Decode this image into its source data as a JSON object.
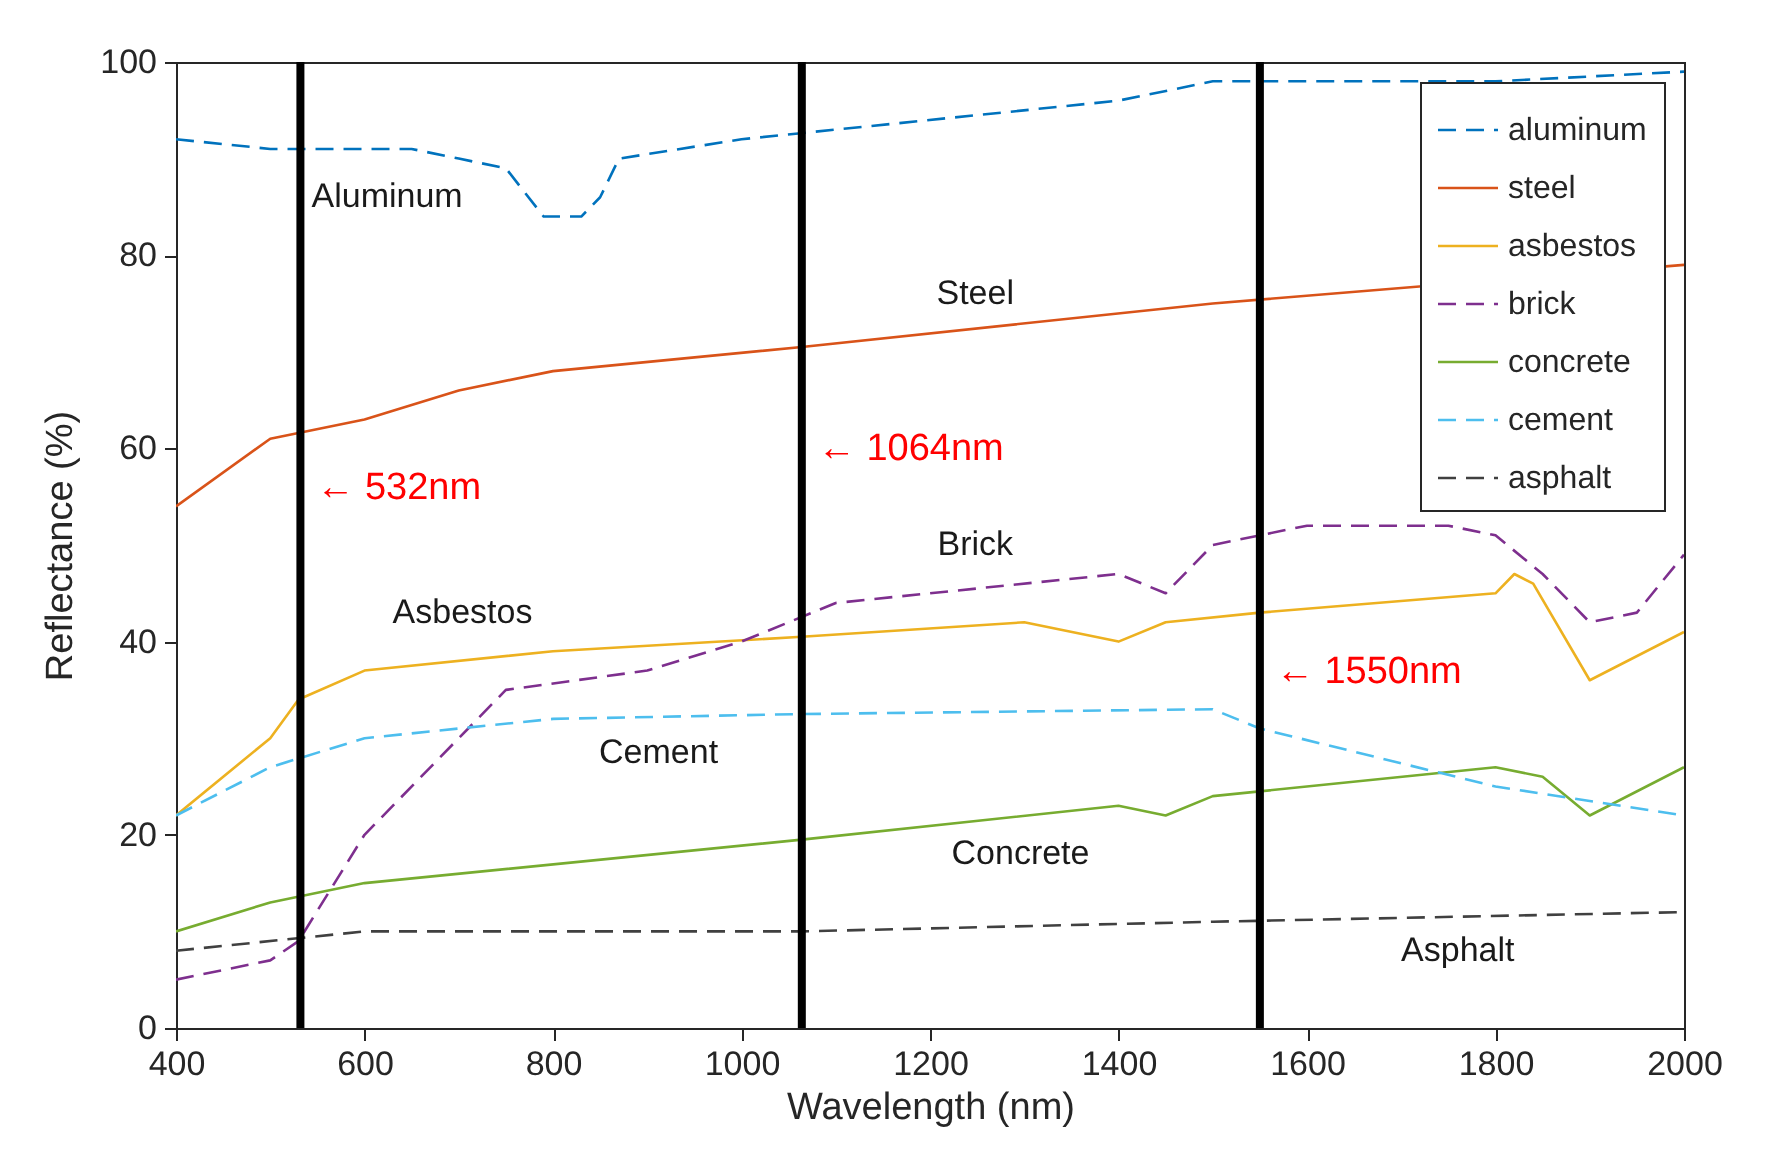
{
  "chart_data": {
    "type": "line",
    "xlabel": "Wavelength (nm)",
    "ylabel": "Reflectance (%)",
    "xlim": [
      400,
      2000
    ],
    "xticks": [
      400,
      600,
      800,
      1000,
      1200,
      1400,
      1600,
      1800,
      2000
    ],
    "ylim": [
      0,
      100
    ],
    "yticks": [
      0,
      20,
      40,
      60,
      80,
      100
    ],
    "grid": false,
    "legend": "top right",
    "marker": "none",
    "series": [
      {
        "name": "aluminum",
        "color": "#0072bd",
        "line_style": "dashed",
        "x": [
          400,
          500,
          600,
          650,
          700,
          750,
          790,
          830,
          850,
          870,
          1000,
          1400,
          1500,
          1800,
          2000
        ],
        "values": [
          92,
          91,
          91,
          91,
          90,
          89,
          84,
          84,
          86,
          90,
          92,
          96,
          98,
          98,
          99
        ]
      },
      {
        "name": "steel",
        "color": "#d95319",
        "line_style": "solid",
        "x": [
          400,
          500,
          600,
          700,
          800,
          1064,
          1500,
          2000
        ],
        "values": [
          54,
          61,
          63,
          66,
          68,
          70.5,
          75,
          79
        ]
      },
      {
        "name": "asbestos",
        "color": "#edb120",
        "line_style": "solid",
        "x": [
          400,
          500,
          530,
          600,
          800,
          1064,
          1300,
          1400,
          1450,
          1550,
          1800,
          1820,
          1840,
          1900,
          2000
        ],
        "values": [
          22,
          30,
          34,
          37,
          39,
          40.5,
          42,
          40,
          42,
          43,
          45,
          47,
          46,
          36,
          41
        ]
      },
      {
        "name": "brick",
        "color": "#7e2f8e",
        "line_style": "dashed",
        "x": [
          400,
          500,
          530,
          600,
          750,
          900,
          1000,
          1100,
          1400,
          1450,
          1500,
          1600,
          1750,
          1800,
          1850,
          1900,
          1950,
          2000
        ],
        "values": [
          5,
          7,
          9,
          20,
          35,
          37,
          40,
          44,
          47,
          45,
          50,
          52,
          52,
          51,
          47,
          42,
          43,
          49
        ]
      },
      {
        "name": "concrete",
        "color": "#77ac30",
        "line_style": "solid",
        "x": [
          400,
          500,
          600,
          1064,
          1400,
          1450,
          1500,
          1800,
          1850,
          1900,
          2000
        ],
        "values": [
          10,
          13,
          15,
          19.5,
          23,
          22,
          24,
          27,
          26,
          22,
          27
        ]
      },
      {
        "name": "cement",
        "color": "#4dbeee",
        "line_style": "dashed",
        "x": [
          400,
          500,
          600,
          700,
          800,
          1064,
          1500,
          1550,
          1800,
          2000
        ],
        "values": [
          22,
          27,
          30,
          31,
          32,
          32.5,
          33,
          31,
          25,
          22
        ]
      },
      {
        "name": "asphalt",
        "color": "#404040",
        "line_style": "dashed",
        "x": [
          400,
          600,
          1064,
          1500,
          2000
        ],
        "values": [
          8,
          10,
          10,
          11,
          12
        ]
      }
    ],
    "ref_lines": [
      {
        "axis": "x",
        "value": 532,
        "label": "← 532nm",
        "color": "#000000"
      },
      {
        "axis": "x",
        "value": 1064,
        "label": "← 1064nm",
        "color": "#000000"
      },
      {
        "axis": "x",
        "value": 1550,
        "label": "← 1550nm",
        "color": "#000000"
      }
    ],
    "annotations": [
      "Aluminum",
      "Steel",
      "Asbestos",
      "Brick",
      "Cement",
      "Concrete",
      "Asphalt"
    ]
  }
}
